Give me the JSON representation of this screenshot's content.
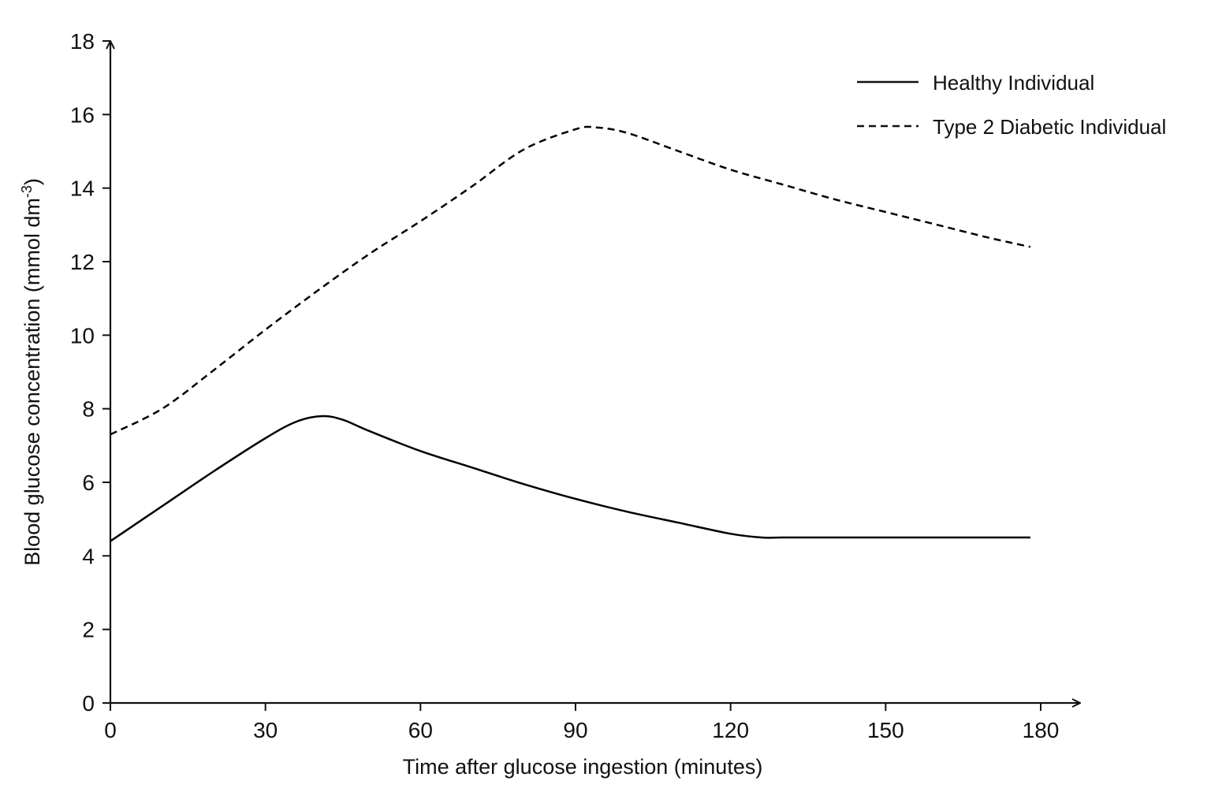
{
  "chart_data": {
    "type": "line",
    "title": "",
    "xlabel": "Time after glucose ingestion (minutes)",
    "ylabel": {
      "main": "Blood glucose concentration (mmol dm",
      "superscript": "-3",
      "close": ")"
    },
    "xlim": [
      0,
      180
    ],
    "ylim": [
      0,
      18
    ],
    "xticks": [
      0,
      30,
      60,
      90,
      120,
      150,
      180
    ],
    "yticks": [
      0,
      2,
      4,
      6,
      8,
      10,
      12,
      14,
      16,
      18
    ],
    "grid": false,
    "legend_position": "top-right",
    "series": [
      {
        "name": "Healthy Individual",
        "style": "solid",
        "color": "#000000",
        "x": [
          0,
          10,
          20,
          30,
          36,
          41,
          45,
          50,
          60,
          70,
          80,
          90,
          100,
          110,
          120,
          126,
          130,
          140,
          150,
          160,
          170,
          178
        ],
        "y": [
          4.4,
          5.35,
          6.3,
          7.2,
          7.65,
          7.8,
          7.7,
          7.4,
          6.85,
          6.4,
          5.95,
          5.55,
          5.2,
          4.9,
          4.6,
          4.5,
          4.5,
          4.5,
          4.5,
          4.5,
          4.5,
          4.5
        ]
      },
      {
        "name": "Type 2 Diabetic Individual",
        "style": "dashed",
        "color": "#000000",
        "x": [
          0,
          10,
          20,
          30,
          40,
          50,
          60,
          70,
          80,
          90,
          94,
          100,
          110,
          120,
          130,
          140,
          150,
          160,
          170,
          178
        ],
        "y": [
          7.3,
          8.0,
          9.05,
          10.15,
          11.2,
          12.2,
          13.1,
          14.05,
          15.05,
          15.6,
          15.65,
          15.5,
          15.0,
          14.5,
          14.1,
          13.7,
          13.35,
          13.0,
          12.65,
          12.4
        ]
      }
    ]
  }
}
